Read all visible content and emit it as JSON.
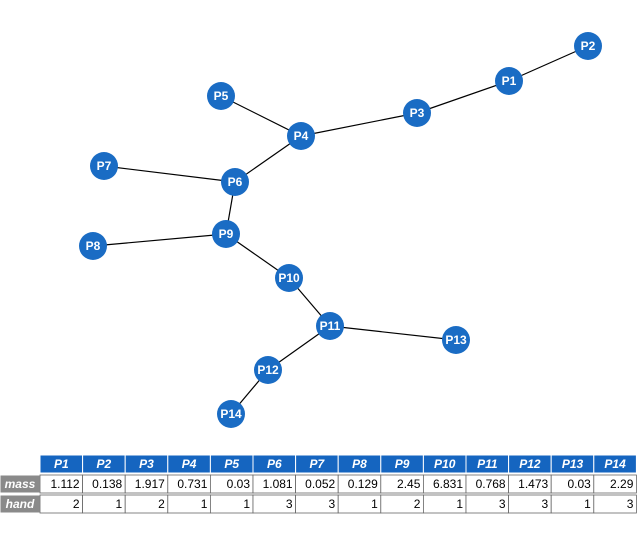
{
  "graph": {
    "nodes": [
      {
        "label": "P1"
      },
      {
        "label": "P2"
      },
      {
        "label": "P3"
      },
      {
        "label": "P4"
      },
      {
        "label": "P5"
      },
      {
        "label": "P6"
      },
      {
        "label": "P7"
      },
      {
        "label": "P8"
      },
      {
        "label": "P9"
      },
      {
        "label": "P10"
      },
      {
        "label": "P11"
      },
      {
        "label": "P12"
      },
      {
        "label": "P13"
      },
      {
        "label": "P14"
      }
    ]
  },
  "table": {
    "columns": [
      "P1",
      "P2",
      "P3",
      "P4",
      "P5",
      "P6",
      "P7",
      "P8",
      "P9",
      "P10",
      "P11",
      "P12",
      "P13",
      "P14"
    ],
    "rows": [
      {
        "label": "mass",
        "values": [
          1.112,
          0.138,
          1.917,
          0.731,
          0.03,
          1.081,
          0.052,
          0.129,
          2.45,
          6.831,
          0.768,
          1.473,
          0.03,
          2.29
        ]
      },
      {
        "label": "hand",
        "values": [
          2,
          1,
          2,
          1,
          1,
          3,
          3,
          1,
          2,
          1,
          3,
          3,
          1,
          3
        ]
      }
    ]
  }
}
